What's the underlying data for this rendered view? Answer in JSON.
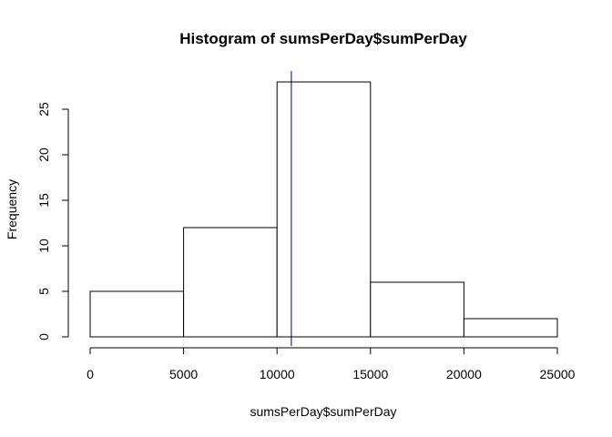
{
  "chart_data": {
    "type": "bar",
    "title": "Histogram of sumsPerDay$sumPerDay",
    "xlabel": "sumsPerDay$sumPerDay",
    "ylabel": "Frequency",
    "bins": [
      {
        "from": 0,
        "to": 5000,
        "count": 5
      },
      {
        "from": 5000,
        "to": 10000,
        "count": 12
      },
      {
        "from": 10000,
        "to": 15000,
        "count": 28
      },
      {
        "from": 15000,
        "to": 20000,
        "count": 6
      },
      {
        "from": 20000,
        "to": 25000,
        "count": 2
      }
    ],
    "xlim": [
      0,
      25000
    ],
    "ylim": [
      0,
      28
    ],
    "x_ticks": [
      0,
      5000,
      10000,
      15000,
      20000,
      25000
    ],
    "y_ticks": [
      0,
      5,
      10,
      15,
      20,
      25
    ],
    "reference_line": {
      "x": 10766,
      "color": "#00008b"
    },
    "grid": false,
    "legend": "none"
  }
}
